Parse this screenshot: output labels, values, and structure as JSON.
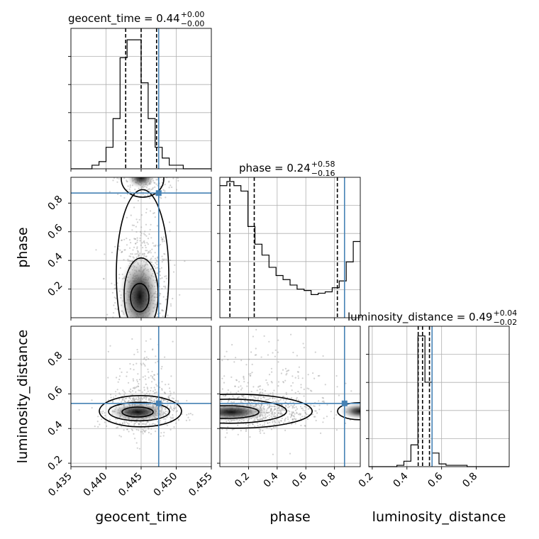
{
  "colors": {
    "truth": "#4682b4",
    "hist": "#000000",
    "grid": "#b0b0b0",
    "scatter": "#9a9a9a"
  },
  "chart_data": {
    "type": "corner",
    "parameters": [
      {
        "name": "geocent_time",
        "axis_label": "geocent_time",
        "title_prefix": "geocent_time = ",
        "median_text": "0.44",
        "plus_text": "+0.00",
        "minus_text": "−0.00",
        "range": [
          0.435,
          0.455
        ],
        "ticks": [
          "0.435",
          "0.440",
          "0.445",
          "0.450",
          "0.455"
        ],
        "tick_values": [
          0.435,
          0.44,
          0.445,
          0.45,
          0.455
        ],
        "truth": 0.4475,
        "quantiles": [
          0.4428,
          0.445,
          0.4472
        ],
        "hist": [
          0,
          0,
          0,
          1,
          2,
          6,
          14,
          31,
          36,
          36,
          24,
          14,
          6,
          3,
          1,
          1,
          0,
          0,
          0,
          0
        ],
        "hist_max": 38
      },
      {
        "name": "phase",
        "axis_label": "phase",
        "title_prefix": "phase = ",
        "median_text": "0.24",
        "plus_text": "+0.58",
        "minus_text": "−0.16",
        "range": [
          0.0,
          0.98
        ],
        "ticks": [
          "0.2",
          "0.4",
          "0.6",
          "0.8"
        ],
        "tick_values": [
          0.2,
          0.4,
          0.6,
          0.8
        ],
        "truth": 0.87,
        "quantiles": [
          0.07,
          0.24,
          0.82
        ],
        "hist": [
          97,
          100,
          97,
          93,
          67,
          54,
          46,
          37,
          31,
          28,
          24,
          21,
          20,
          17,
          18,
          19,
          22,
          27,
          41,
          56
        ],
        "hist_max": 100
      },
      {
        "name": "luminosity_distance",
        "axis_label": "luminosity_distance",
        "title_prefix": "luminosity_distance = ",
        "median_text": "0.49",
        "plus_text": "+0.04",
        "minus_text": "−0.02",
        "range": [
          0.18,
          0.99
        ],
        "ticks": [
          "0.2",
          "0.4",
          "0.6",
          "0.8"
        ],
        "tick_values": [
          0.2,
          0.4,
          0.6,
          0.8
        ],
        "truth": 0.545,
        "quantiles": [
          0.465,
          0.49,
          0.53
        ],
        "hist": [
          0,
          0,
          0,
          0,
          1,
          4,
          16,
          96,
          62,
          10,
          2,
          1,
          1,
          1,
          0,
          0,
          0,
          0,
          0,
          0
        ],
        "hist_max": 100
      }
    ],
    "y_tick_labels": {
      "phase": [
        "0.2",
        "0.4",
        "0.6",
        "0.8"
      ],
      "luminosity_distance": [
        "0.2",
        "0.4",
        "0.6",
        "0.8"
      ]
    },
    "y_axis_labels": [
      "phase",
      "luminosity_distance"
    ],
    "grid": true
  }
}
